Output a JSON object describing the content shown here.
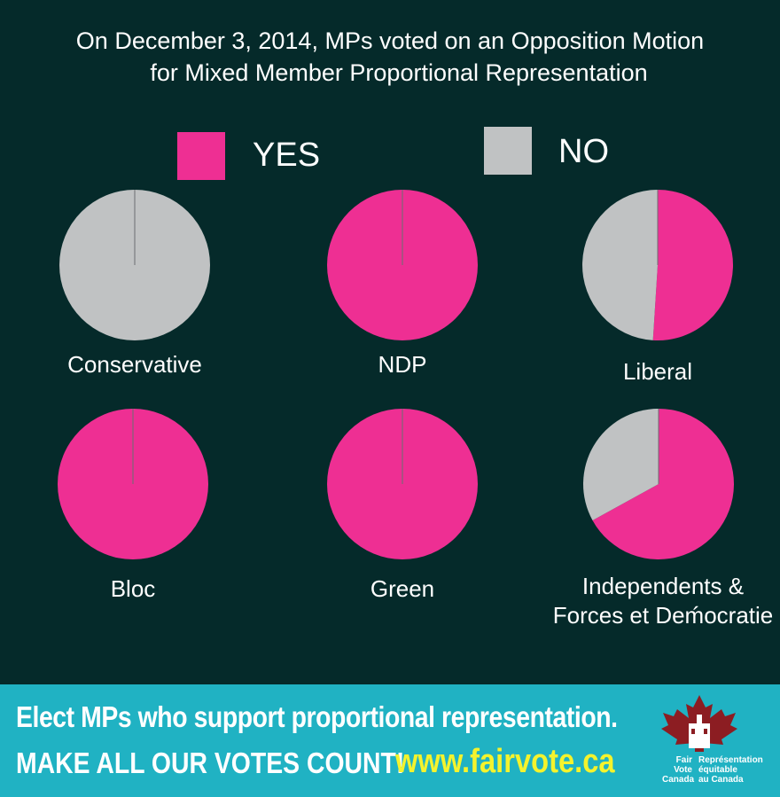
{
  "title_lines": [
    "On December 3, 2014, MPs voted on an Opposition Motion",
    "for Mixed Member Proportional Representation"
  ],
  "colors": {
    "background": "#052a2a",
    "yes": "#ee2f93",
    "no": "#c0c2c3",
    "footer_bg": "#20b2c3",
    "url": "#f4f32d",
    "logo_red": "#8c1d22"
  },
  "legend": {
    "yes_label": "YES",
    "no_label": "NO"
  },
  "chart_data": {
    "type": "pie",
    "categories": [
      "YES",
      "NO"
    ],
    "pies": [
      {
        "name": "Conservative",
        "yes": 0,
        "no": 100
      },
      {
        "name": "NDP",
        "yes": 100,
        "no": 0
      },
      {
        "name": "Liberal",
        "yes": 51,
        "no": 49
      },
      {
        "name": "Bloc",
        "yes": 100,
        "no": 0
      },
      {
        "name": "Green",
        "yes": 100,
        "no": 0
      },
      {
        "name": "Independents & Forces et Deḿocratie",
        "label_lines": [
          "Independents &",
          "Forces et Deḿocratie"
        ],
        "yes": 67,
        "no": 33
      }
    ]
  },
  "footer": {
    "line1": "Elect MPs who support proportional representation.",
    "line2": "MAKE ALL OUR VOTES COUNT!",
    "url": "www.fairvote.ca",
    "logo_left": [
      "Fair",
      "Vote",
      "Canada"
    ],
    "logo_right": [
      "Représentation",
      "équitable",
      "au Canada"
    ]
  }
}
